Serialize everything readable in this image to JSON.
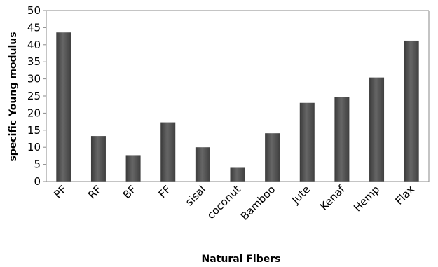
{
  "chart_data": {
    "type": "bar",
    "title": "",
    "xlabel": "Natural Fibers",
    "ylabel": "specific Young modulus",
    "categories": [
      "PF",
      "RF",
      "BF",
      "FF",
      "sisal",
      "coconut",
      "Bamboo",
      "Jute",
      "Kenaf",
      "Hemp",
      "Flax"
    ],
    "values": [
      43.6,
      13.3,
      7.7,
      17.3,
      10.0,
      4.0,
      14.1,
      23.0,
      24.6,
      30.4,
      41.2
    ],
    "ylim": [
      0,
      50
    ],
    "yticks": [
      "0",
      "5",
      "10",
      "15",
      "20",
      "25",
      "30",
      "35",
      "40",
      "45",
      "50"
    ],
    "grid": false,
    "legend": "none",
    "bar_color": "#4f4f4f"
  }
}
